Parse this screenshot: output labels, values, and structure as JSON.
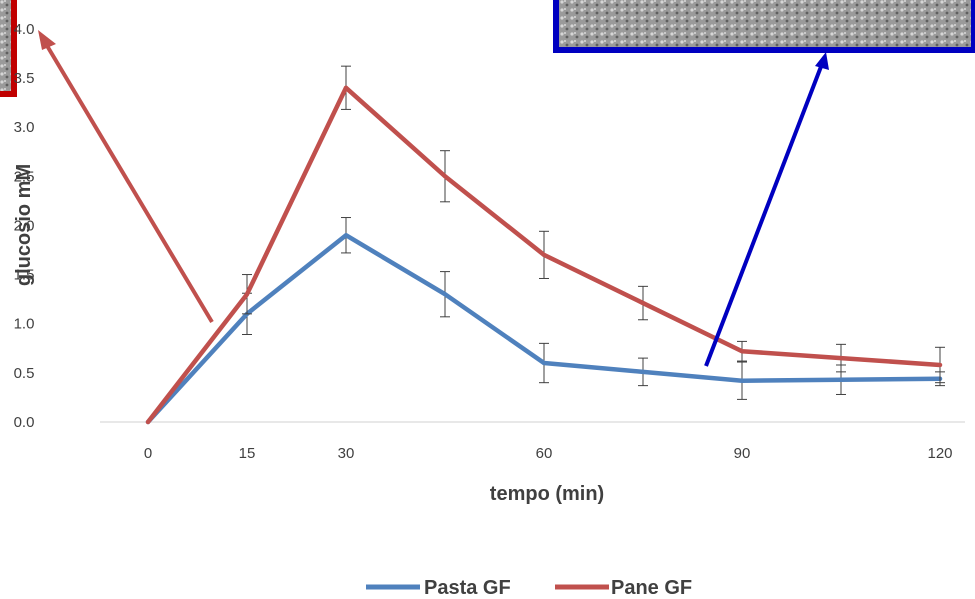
{
  "chart_data": {
    "type": "line",
    "title": "",
    "xlabel": "tempo (min)",
    "ylabel": "glucosio mM",
    "x": [
      0,
      15,
      30,
      45,
      60,
      75,
      90,
      105,
      120
    ],
    "xticks": [
      "0",
      "15",
      "30",
      "60",
      "90",
      "120"
    ],
    "xtick_values": [
      0,
      15,
      30,
      60,
      90,
      120
    ],
    "yticks": [
      "0.0",
      "0.5",
      "1.0",
      "1.5",
      "2.0",
      "2.5",
      "3.0",
      "3.5",
      "4.0"
    ],
    "ylim": [
      0,
      4
    ],
    "grid": false,
    "legend": "bottom-center",
    "series": [
      {
        "name": "Pasta GF",
        "color": "#4f81bd",
        "values": [
          0.0,
          1.1,
          1.9,
          1.3,
          0.6,
          0.51,
          0.42,
          0.43,
          0.44
        ],
        "errors": [
          0.0,
          0.21,
          0.18,
          0.23,
          0.2,
          0.14,
          0.19,
          0.15,
          0.07
        ]
      },
      {
        "name": "Pane GF",
        "color": "#c0504d",
        "values": [
          0.0,
          1.3,
          3.4,
          2.5,
          1.7,
          1.21,
          0.72,
          0.65,
          0.58
        ],
        "errors": [
          0.0,
          0.2,
          0.22,
          0.26,
          0.24,
          0.17,
          0.1,
          0.14,
          0.18
        ]
      }
    ],
    "annotations": {
      "red_arrow_color": "#c0504d",
      "blue_arrow_color": "#0000c0",
      "red_frame_color": "#c00000",
      "blue_frame_color": "#0000c0"
    }
  }
}
